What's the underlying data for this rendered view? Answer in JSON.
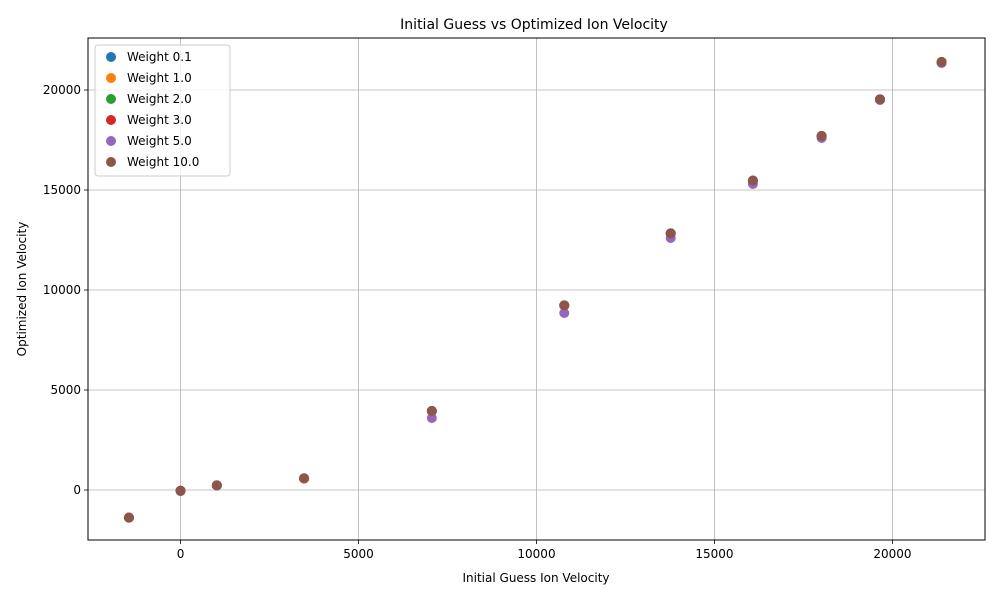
{
  "chart_data": {
    "type": "scatter",
    "title": "Initial Guess vs Optimized Ion Velocity",
    "xlabel": "Initial Guess Ion Velocity",
    "ylabel": "Optimized Ion Velocity",
    "xlim": [
      -2600,
      22600
    ],
    "ylim": [
      -2500,
      22600
    ],
    "xticks": [
      0,
      5000,
      10000,
      15000,
      20000
    ],
    "yticks": [
      0,
      5000,
      10000,
      15000,
      20000
    ],
    "grid": true,
    "legend_position": "top-left",
    "series": [
      {
        "name": "Weight 0.1",
        "color": "#1f77b4",
        "x": [
          -1450,
          0,
          1020,
          3470,
          7060,
          10780,
          13770,
          16080,
          18010,
          19650,
          21380
        ],
        "y": [
          -1380,
          -40,
          230,
          580,
          3950,
          9230,
          12830,
          15470,
          17700,
          19530,
          21400
        ]
      },
      {
        "name": "Weight 1.0",
        "color": "#ff7f0e",
        "x": [
          -1450,
          0,
          1020,
          3470,
          7060,
          10780,
          13770,
          16080,
          18010,
          19650,
          21380
        ],
        "y": [
          -1380,
          -40,
          230,
          580,
          3950,
          9230,
          12830,
          15470,
          17700,
          19530,
          21400
        ]
      },
      {
        "name": "Weight 2.0",
        "color": "#2ca02c",
        "x": [
          -1450,
          0,
          1020,
          3470,
          7060,
          10780,
          13770,
          16080,
          18010,
          19650,
          21380
        ],
        "y": [
          -1380,
          -40,
          230,
          580,
          3950,
          9230,
          12830,
          15470,
          17700,
          19530,
          21400
        ]
      },
      {
        "name": "Weight 3.0",
        "color": "#d62728",
        "x": [
          -1450,
          0,
          1020,
          3470,
          7060,
          10780,
          13770,
          16080,
          18010,
          19650,
          21380
        ],
        "y": [
          -1380,
          -40,
          230,
          580,
          3950,
          9230,
          12830,
          15470,
          17700,
          19530,
          21400
        ]
      },
      {
        "name": "Weight 5.0",
        "color": "#9467bd",
        "x": [
          -1450,
          0,
          1020,
          3470,
          7060,
          10780,
          13770,
          16080,
          18010,
          19650,
          21380
        ],
        "y": [
          -1380,
          -40,
          230,
          580,
          3600,
          8850,
          12600,
          15300,
          17600,
          19500,
          21350
        ]
      },
      {
        "name": "Weight 10.0",
        "color": "#8c564b",
        "x": [
          -1450,
          0,
          1020,
          3470,
          7060,
          10780,
          13770,
          16080,
          18010,
          19650,
          21380
        ],
        "y": [
          -1380,
          -40,
          230,
          580,
          3950,
          9230,
          12830,
          15470,
          17700,
          19530,
          21400
        ]
      }
    ]
  }
}
